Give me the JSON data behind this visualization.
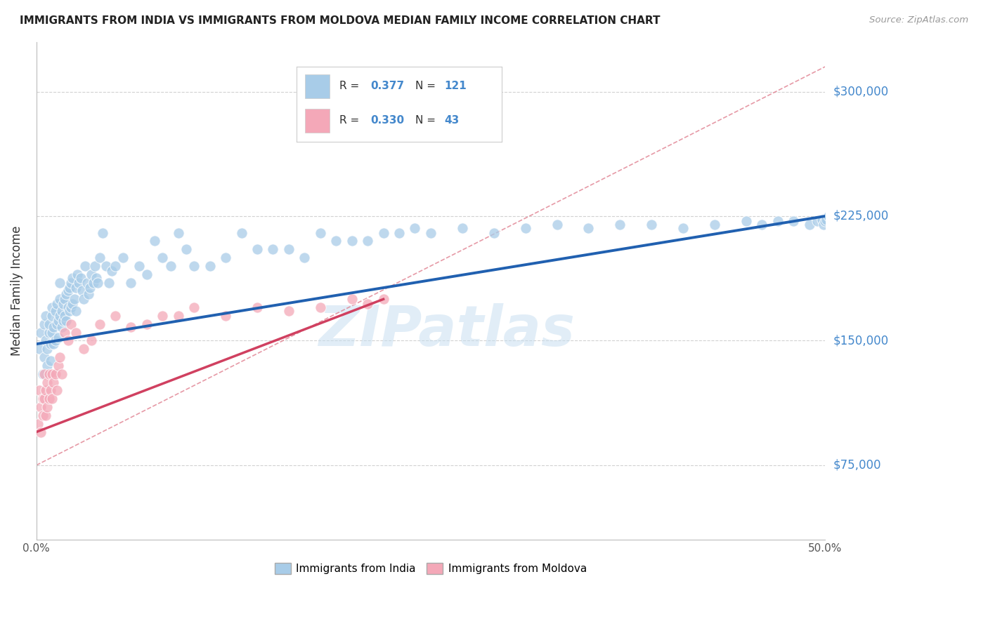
{
  "title": "IMMIGRANTS FROM INDIA VS IMMIGRANTS FROM MOLDOVA MEDIAN FAMILY INCOME CORRELATION CHART",
  "source": "Source: ZipAtlas.com",
  "ylabel": "Median Family Income",
  "watermark": "ZIPatlas",
  "legend_india_R": 0.377,
  "legend_india_N": 121,
  "legend_moldova_R": 0.33,
  "legend_moldova_N": 43,
  "india_color": "#a8cce8",
  "moldova_color": "#f4a8b8",
  "india_line_color": "#2060b0",
  "moldova_line_color": "#d04060",
  "diagonal_color": "#e08090",
  "diagonal_style": "--",
  "background_color": "#ffffff",
  "grid_color": "#cccccc",
  "right_label_color": "#4488cc",
  "xlim": [
    0.0,
    0.5
  ],
  "ylim": [
    30000,
    330000
  ],
  "yticks": [
    75000,
    150000,
    225000,
    300000
  ],
  "ytick_labels": [
    "$75,000",
    "$150,000",
    "$225,000",
    "$300,000"
  ],
  "india_line_x": [
    0.0,
    0.5
  ],
  "india_line_y": [
    148000,
    225000
  ],
  "moldova_line_x": [
    0.0,
    0.22
  ],
  "moldova_line_y": [
    95000,
    175000
  ],
  "india_x": [
    0.002,
    0.003,
    0.004,
    0.005,
    0.005,
    0.006,
    0.006,
    0.007,
    0.007,
    0.008,
    0.008,
    0.009,
    0.009,
    0.01,
    0.01,
    0.01,
    0.011,
    0.011,
    0.012,
    0.012,
    0.013,
    0.013,
    0.014,
    0.014,
    0.015,
    0.015,
    0.015,
    0.016,
    0.016,
    0.017,
    0.017,
    0.018,
    0.018,
    0.019,
    0.019,
    0.02,
    0.02,
    0.021,
    0.021,
    0.022,
    0.022,
    0.023,
    0.023,
    0.024,
    0.025,
    0.025,
    0.026,
    0.027,
    0.028,
    0.029,
    0.03,
    0.031,
    0.032,
    0.033,
    0.034,
    0.035,
    0.036,
    0.037,
    0.038,
    0.039,
    0.04,
    0.042,
    0.044,
    0.046,
    0.048,
    0.05,
    0.055,
    0.06,
    0.065,
    0.07,
    0.075,
    0.08,
    0.085,
    0.09,
    0.095,
    0.1,
    0.11,
    0.12,
    0.13,
    0.14,
    0.15,
    0.16,
    0.17,
    0.18,
    0.19,
    0.2,
    0.21,
    0.22,
    0.23,
    0.24,
    0.25,
    0.27,
    0.29,
    0.31,
    0.33,
    0.35,
    0.37,
    0.39,
    0.41,
    0.43,
    0.45,
    0.46,
    0.47,
    0.48,
    0.49,
    0.495,
    0.498,
    0.499,
    0.5,
    0.501,
    0.502
  ],
  "india_y": [
    145000,
    155000,
    130000,
    160000,
    140000,
    150000,
    165000,
    145000,
    135000,
    155000,
    160000,
    148000,
    138000,
    165000,
    155000,
    170000,
    158000,
    148000,
    168000,
    150000,
    160000,
    172000,
    162000,
    152000,
    175000,
    165000,
    185000,
    168000,
    158000,
    172000,
    162000,
    175000,
    165000,
    178000,
    162000,
    180000,
    170000,
    182000,
    168000,
    185000,
    170000,
    188000,
    172000,
    175000,
    182000,
    168000,
    190000,
    185000,
    188000,
    180000,
    175000,
    195000,
    185000,
    178000,
    182000,
    190000,
    185000,
    195000,
    188000,
    185000,
    200000,
    215000,
    195000,
    185000,
    192000,
    195000,
    200000,
    185000,
    195000,
    190000,
    210000,
    200000,
    195000,
    215000,
    205000,
    195000,
    195000,
    200000,
    215000,
    205000,
    205000,
    205000,
    200000,
    215000,
    210000,
    210000,
    210000,
    215000,
    215000,
    218000,
    215000,
    218000,
    215000,
    218000,
    220000,
    218000,
    220000,
    220000,
    218000,
    220000,
    222000,
    220000,
    222000,
    222000,
    220000,
    222000,
    223000,
    220000,
    222000,
    223000,
    225000
  ],
  "moldova_x": [
    0.001,
    0.002,
    0.003,
    0.003,
    0.004,
    0.004,
    0.005,
    0.005,
    0.006,
    0.006,
    0.007,
    0.007,
    0.008,
    0.008,
    0.009,
    0.01,
    0.01,
    0.011,
    0.012,
    0.013,
    0.014,
    0.015,
    0.016,
    0.018,
    0.02,
    0.022,
    0.025,
    0.03,
    0.035,
    0.04,
    0.05,
    0.06,
    0.07,
    0.08,
    0.09,
    0.1,
    0.12,
    0.14,
    0.16,
    0.18,
    0.2,
    0.21,
    0.22
  ],
  "moldova_y": [
    100000,
    120000,
    110000,
    95000,
    115000,
    105000,
    130000,
    115000,
    120000,
    105000,
    125000,
    110000,
    130000,
    115000,
    120000,
    130000,
    115000,
    125000,
    130000,
    120000,
    135000,
    140000,
    130000,
    155000,
    150000,
    160000,
    155000,
    145000,
    150000,
    160000,
    165000,
    158000,
    160000,
    165000,
    165000,
    170000,
    165000,
    170000,
    168000,
    170000,
    175000,
    172000,
    175000
  ]
}
